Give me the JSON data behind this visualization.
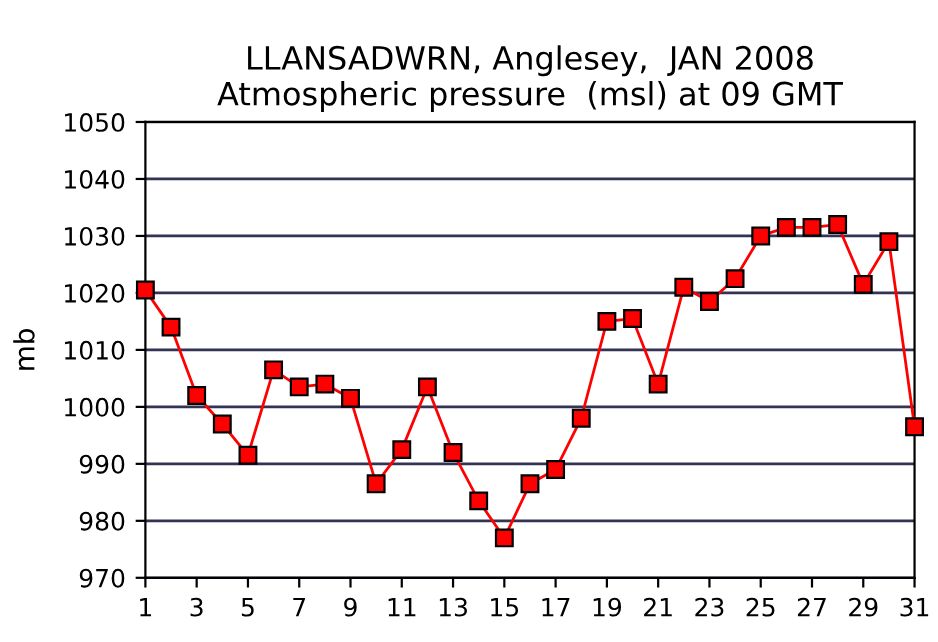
{
  "chart_data": {
    "type": "line",
    "title": "LLANSADWRN, Anglesey,  JAN 2008\nAtmospheric pressure  (msl) at 09 GMT",
    "ylabel": "mb",
    "x": [
      1,
      2,
      3,
      4,
      5,
      6,
      7,
      8,
      9,
      10,
      11,
      12,
      13,
      14,
      15,
      16,
      17,
      18,
      19,
      20,
      21,
      22,
      23,
      24,
      25,
      26,
      27,
      28,
      29,
      30,
      31
    ],
    "series": [
      {
        "color": "#ff0000",
        "values": [
          1020.5,
          1014,
          1002,
          997,
          991.5,
          1006.5,
          1003.5,
          1004,
          1001.5,
          986.5,
          992.5,
          1003.5,
          992,
          983.5,
          977,
          986.5,
          989,
          998,
          1015,
          1015.5,
          1004,
          1021,
          1018.5,
          1022.5,
          1030,
          1031.5,
          1031.5,
          1032,
          1021.5,
          1029,
          996.5
        ]
      }
    ],
    "xlim": [
      1,
      31
    ],
    "xticks": [
      1,
      3,
      5,
      7,
      9,
      11,
      13,
      15,
      17,
      19,
      21,
      23,
      25,
      27,
      29,
      31
    ],
    "ylim": [
      970,
      1050
    ],
    "yticks": [
      970,
      980,
      990,
      1000,
      1010,
      1020,
      1030,
      1040,
      1050
    ],
    "grid": "y",
    "marker": "square",
    "line_style": "solid",
    "legend": false
  }
}
